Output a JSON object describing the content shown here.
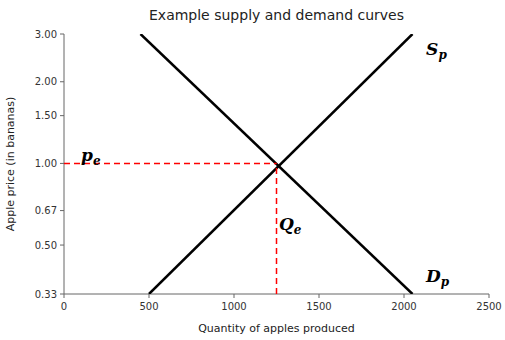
{
  "chart_data": {
    "type": "line",
    "title": "Example supply and demand curves",
    "xlabel": "Quantity of apples produced",
    "ylabel": "Apple price (in bananas)",
    "log": "y",
    "grid": false,
    "xlim": [
      0,
      2500
    ],
    "ylim": [
      0.33,
      3.0
    ],
    "xticks": [
      0,
      500,
      1000,
      1500,
      2000,
      2500
    ],
    "yticks": [
      0.33,
      {
        "value": 0.5,
        "label": "0.50"
      },
      0.67,
      {
        "value": 1.0,
        "label": "1.00"
      },
      {
        "value": 1.5,
        "label": "1.50"
      },
      {
        "value": 2.0,
        "label": "2.00"
      },
      {
        "value": 3.0,
        "label": "3.00"
      }
    ],
    "series": [
      {
        "x": [
          500,
          2050
        ],
        "values": [
          0.33,
          3.0
        ],
        "color": "#000000",
        "line_style": "solid"
      },
      {
        "x": [
          450,
          2050
        ],
        "values": [
          3.0,
          0.33
        ],
        "color": "#000000",
        "line_style": "solid"
      },
      {
        "x": [
          0,
          1250
        ],
        "values": [
          1.0,
          1.0
        ],
        "color": "#ff0000",
        "line_style": "dashed"
      },
      {
        "x": [
          1250,
          1250
        ],
        "values": [
          0.33,
          1.0
        ],
        "color": "#ff0000",
        "line_style": "dashed"
      }
    ],
    "annotations": [
      {
        "text": "Sp",
        "x": 2130,
        "y": 2.65
      },
      {
        "text": "Dp",
        "x": 2130,
        "y": 0.385
      },
      {
        "text": "pe",
        "x": 100,
        "y": 1.07
      },
      {
        "text": "Qe",
        "x": 1265,
        "y": 0.6
      }
    ]
  }
}
